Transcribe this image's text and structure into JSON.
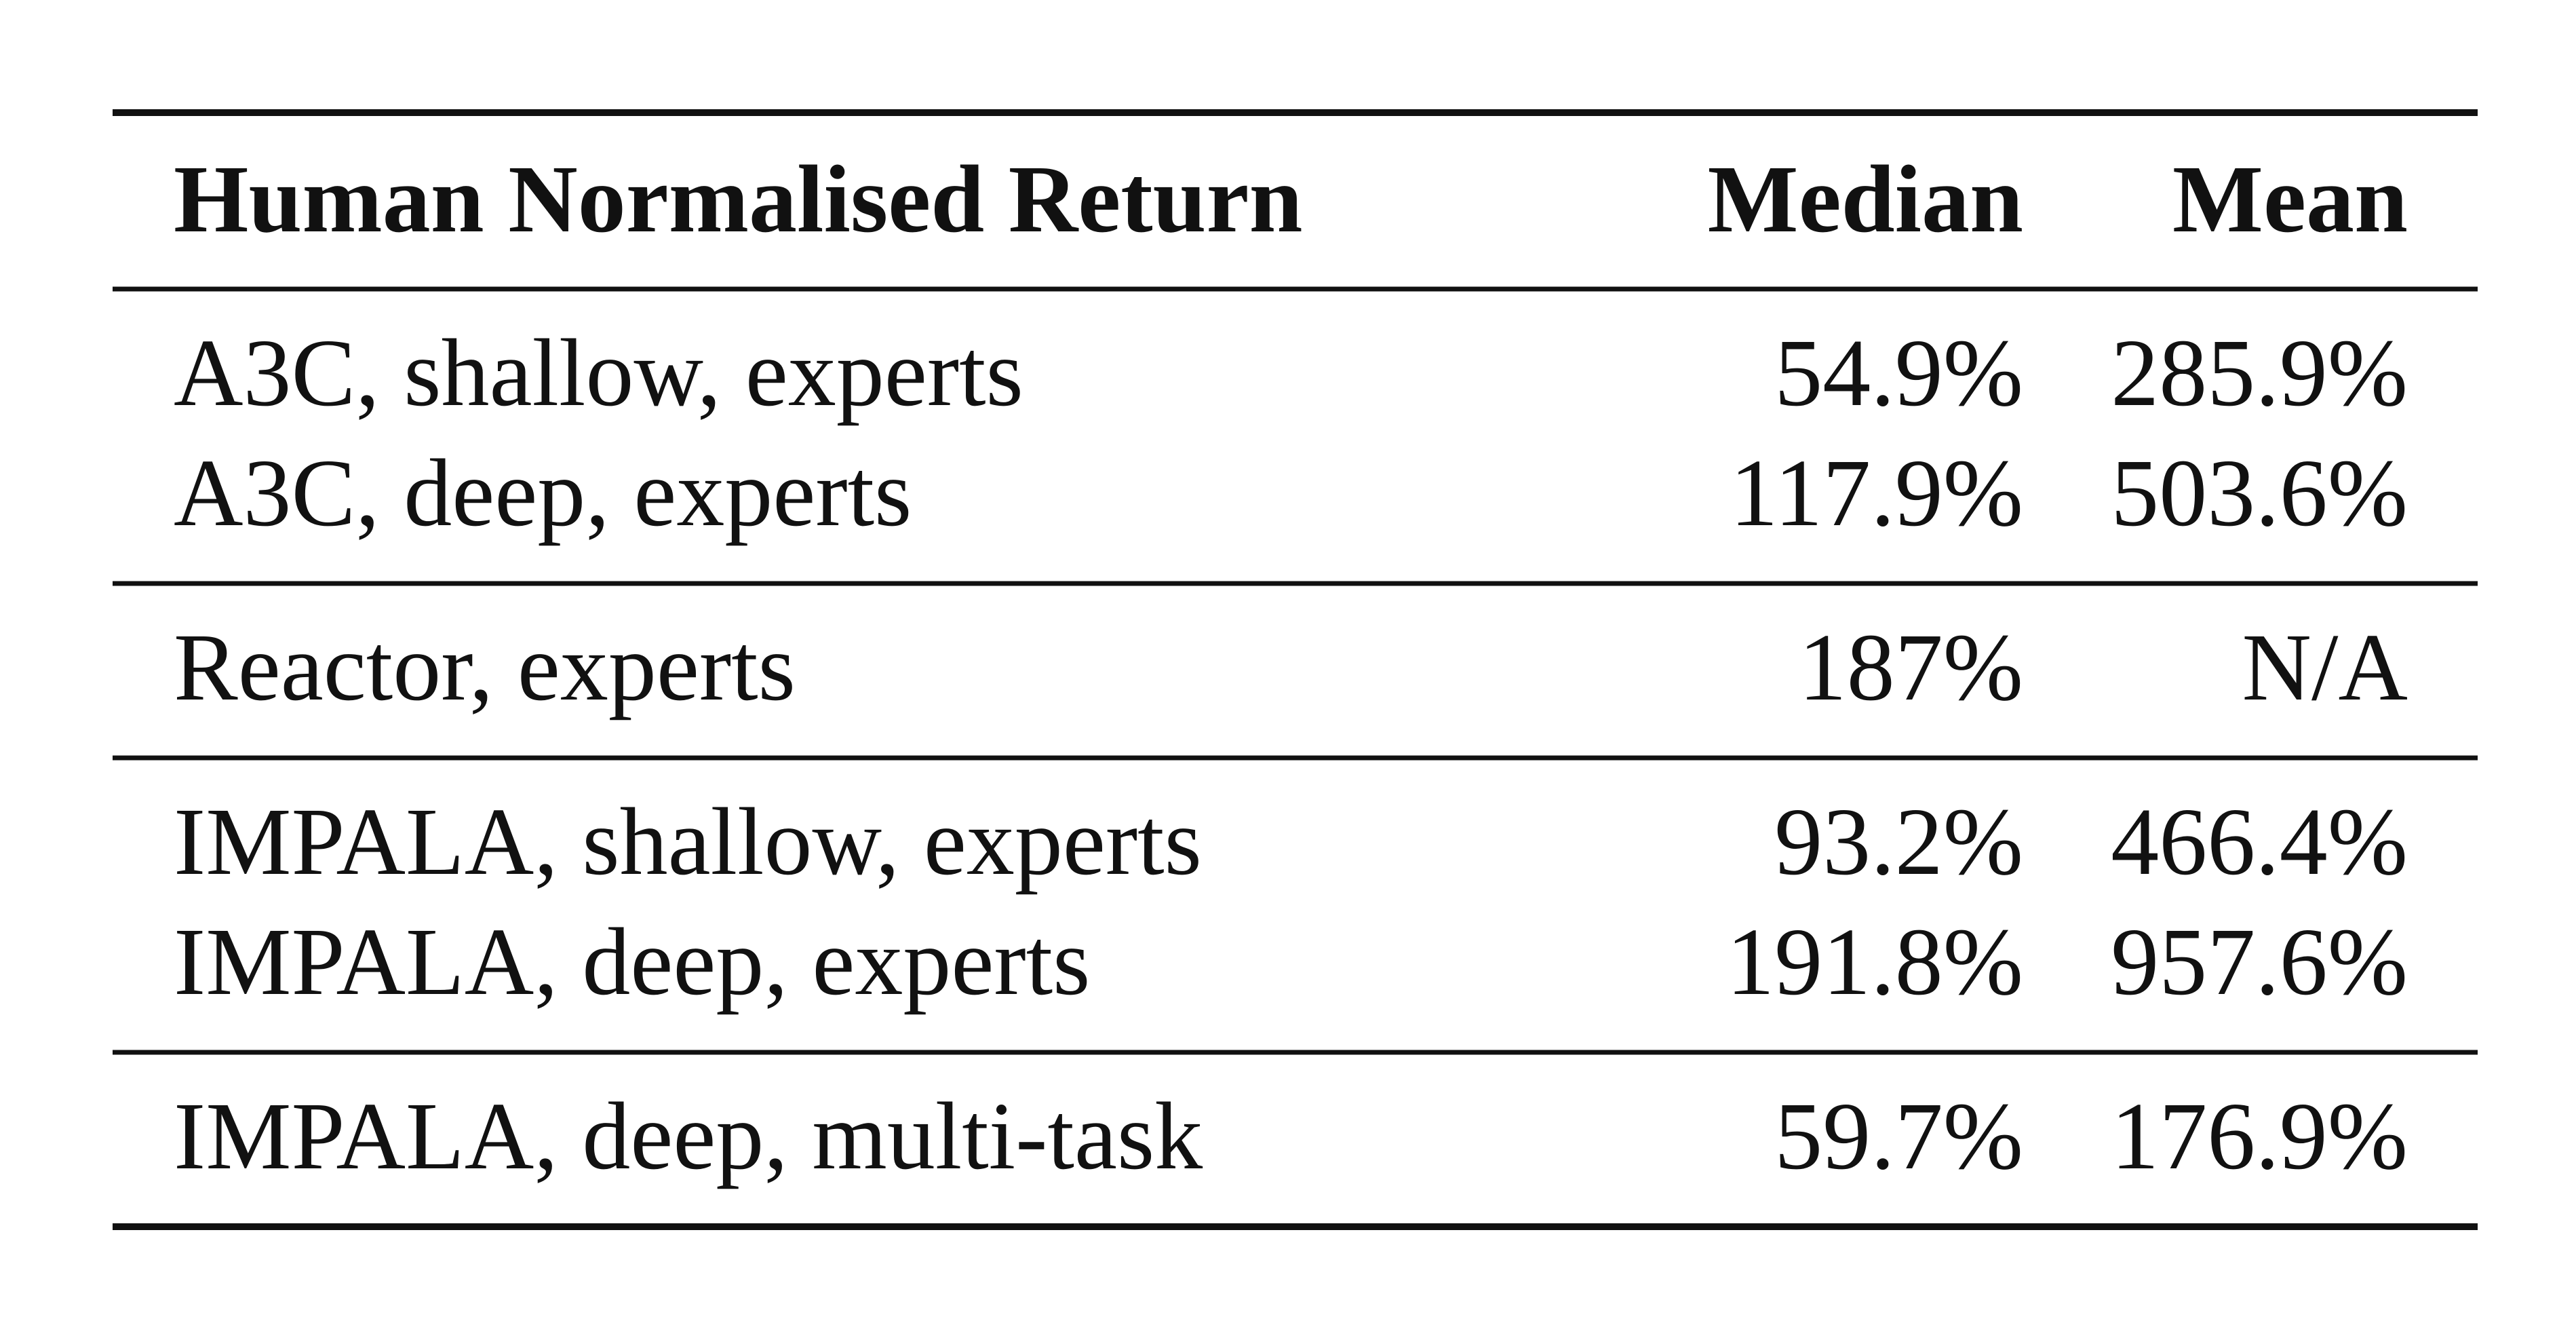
{
  "table": {
    "header": [
      "Human Normalised Return",
      "Median",
      "Mean"
    ],
    "groups": [
      [
        [
          "A3C, shallow, experts",
          "54.9%",
          "285.9%"
        ],
        [
          "A3C, deep, experts",
          "117.9%",
          "503.6%"
        ]
      ],
      [
        [
          "Reactor, experts",
          "187%",
          "N/A"
        ]
      ],
      [
        [
          "IMPALA, shallow, experts",
          "93.2%",
          "466.4%"
        ],
        [
          "IMPALA, deep, experts",
          "191.8%",
          "957.6%"
        ]
      ],
      [
        [
          "IMPALA, deep, multi-task",
          "59.7%",
          "176.9%"
        ]
      ]
    ]
  }
}
